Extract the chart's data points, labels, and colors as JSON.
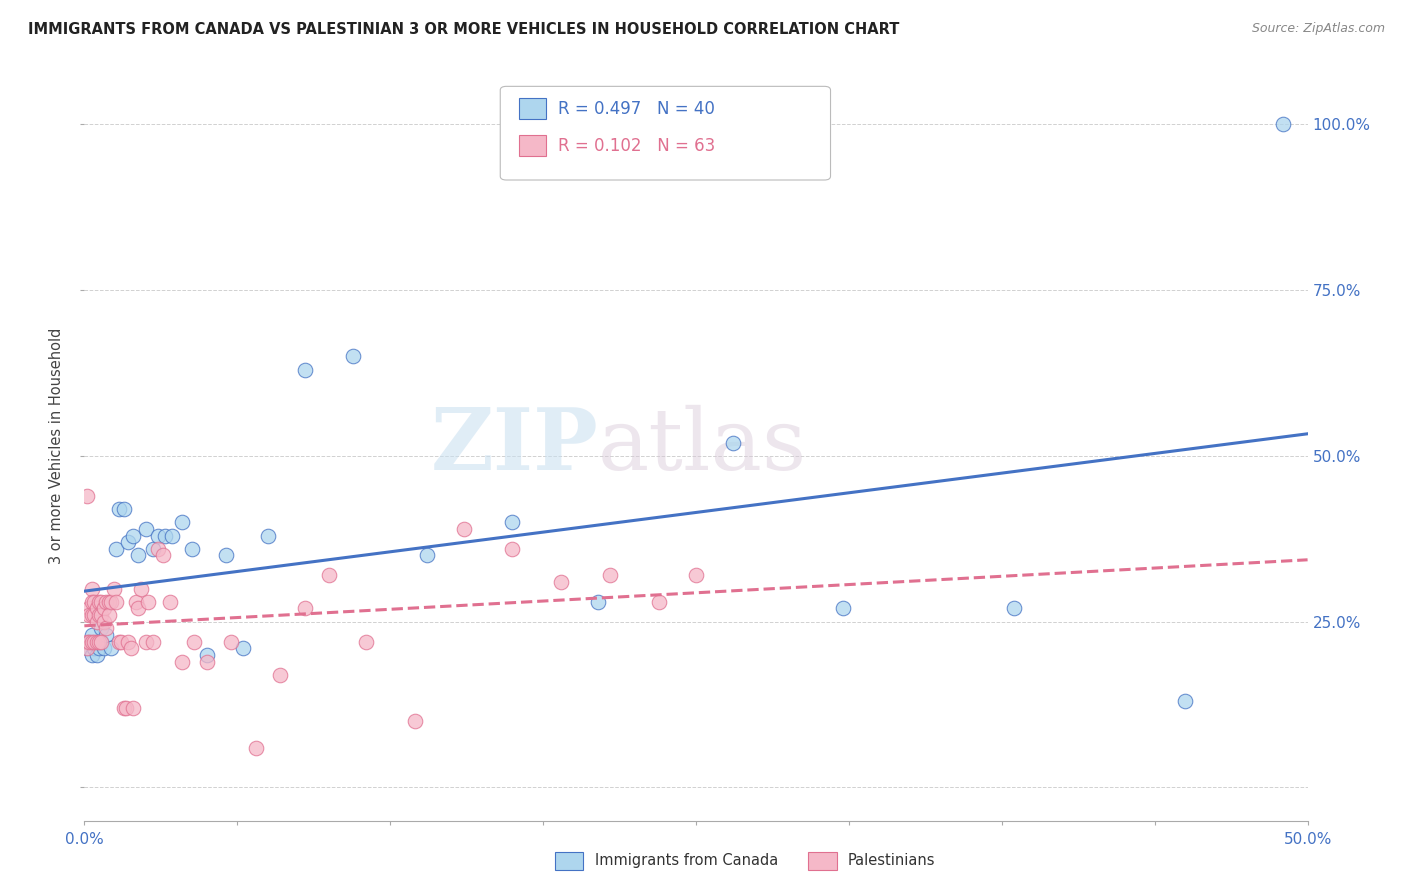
{
  "title": "IMMIGRANTS FROM CANADA VS PALESTINIAN 3 OR MORE VEHICLES IN HOUSEHOLD CORRELATION CHART",
  "source": "Source: ZipAtlas.com",
  "ylabel": "3 or more Vehicles in Household",
  "watermark": "ZIPatlas",
  "blue_label": "Immigrants from Canada",
  "pink_label": "Palestinians",
  "blue_R": 0.497,
  "blue_N": 40,
  "pink_R": 0.102,
  "pink_N": 63,
  "blue_color": "#AED6EE",
  "pink_color": "#F5B8C8",
  "blue_edge_color": "#4472C4",
  "pink_edge_color": "#E07090",
  "blue_trend_color": "#4472C4",
  "pink_trend_color": "#E07090",
  "xmin": 0.0,
  "xmax": 0.5,
  "ymin": -0.05,
  "ymax": 1.08,
  "yticks": [
    0.0,
    0.25,
    0.5,
    0.75,
    1.0
  ],
  "ytick_labels": [
    "",
    "25.0%",
    "50.0%",
    "75.0%",
    "100.0%"
  ],
  "xtick_positions": [
    0.0,
    0.0625,
    0.125,
    0.1875,
    0.25,
    0.3125,
    0.375,
    0.4375,
    0.5
  ],
  "blue_x": [
    0.001,
    0.002,
    0.003,
    0.003,
    0.004,
    0.005,
    0.005,
    0.006,
    0.007,
    0.007,
    0.008,
    0.009,
    0.011,
    0.013,
    0.014,
    0.016,
    0.018,
    0.02,
    0.022,
    0.025,
    0.028,
    0.03,
    0.033,
    0.036,
    0.04,
    0.044,
    0.05,
    0.058,
    0.065,
    0.075,
    0.09,
    0.11,
    0.14,
    0.175,
    0.21,
    0.265,
    0.31,
    0.38,
    0.45,
    0.49
  ],
  "blue_y": [
    0.21,
    0.22,
    0.2,
    0.23,
    0.21,
    0.22,
    0.2,
    0.21,
    0.22,
    0.24,
    0.21,
    0.23,
    0.21,
    0.36,
    0.42,
    0.42,
    0.37,
    0.38,
    0.35,
    0.39,
    0.36,
    0.38,
    0.38,
    0.38,
    0.4,
    0.36,
    0.2,
    0.35,
    0.21,
    0.38,
    0.63,
    0.65,
    0.35,
    0.4,
    0.28,
    0.52,
    0.27,
    0.27,
    0.13,
    1.0
  ],
  "pink_x": [
    0.001,
    0.001,
    0.001,
    0.002,
    0.002,
    0.002,
    0.003,
    0.003,
    0.003,
    0.003,
    0.004,
    0.004,
    0.004,
    0.005,
    0.005,
    0.005,
    0.006,
    0.006,
    0.006,
    0.007,
    0.007,
    0.007,
    0.008,
    0.008,
    0.009,
    0.009,
    0.01,
    0.01,
    0.011,
    0.012,
    0.013,
    0.014,
    0.015,
    0.016,
    0.017,
    0.018,
    0.019,
    0.02,
    0.021,
    0.022,
    0.023,
    0.025,
    0.026,
    0.028,
    0.03,
    0.032,
    0.035,
    0.04,
    0.045,
    0.05,
    0.06,
    0.07,
    0.08,
    0.09,
    0.1,
    0.115,
    0.135,
    0.155,
    0.175,
    0.195,
    0.215,
    0.235,
    0.25
  ],
  "pink_y": [
    0.44,
    0.22,
    0.21,
    0.27,
    0.26,
    0.22,
    0.3,
    0.28,
    0.26,
    0.22,
    0.28,
    0.26,
    0.22,
    0.27,
    0.25,
    0.22,
    0.28,
    0.26,
    0.22,
    0.28,
    0.26,
    0.22,
    0.27,
    0.25,
    0.28,
    0.24,
    0.28,
    0.26,
    0.28,
    0.3,
    0.28,
    0.22,
    0.22,
    0.12,
    0.12,
    0.22,
    0.21,
    0.12,
    0.28,
    0.27,
    0.3,
    0.22,
    0.28,
    0.22,
    0.36,
    0.35,
    0.28,
    0.19,
    0.22,
    0.19,
    0.22,
    0.06,
    0.17,
    0.27,
    0.32,
    0.22,
    0.1,
    0.39,
    0.36,
    0.31,
    0.32,
    0.28,
    0.32
  ]
}
